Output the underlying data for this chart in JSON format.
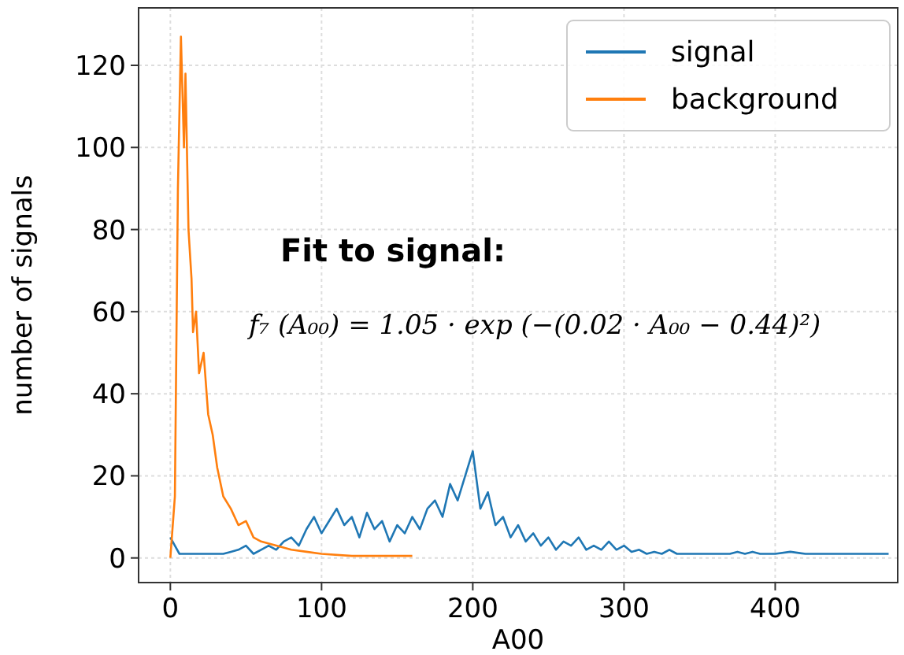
{
  "chart_data": {
    "type": "line",
    "xlabel": "A00",
    "ylabel": "number of signals",
    "xlim": [
      -21,
      481
    ],
    "ylim": [
      -6,
      134
    ],
    "xticks": [
      0,
      100,
      200,
      300,
      400
    ],
    "yticks": [
      0,
      20,
      40,
      60,
      80,
      100,
      120
    ],
    "grid": true,
    "legend": "top right",
    "annotations": [
      "Fit to signal:",
      "f₇ (A₀₀) = 1.05 · exp (−(0.02 · A₀₀ − 0.44)²)"
    ],
    "series": [
      {
        "name": "signal",
        "color": "#1f77b4",
        "x": [
          0,
          3,
          6,
          10,
          15,
          20,
          25,
          30,
          35,
          40,
          45,
          50,
          55,
          60,
          65,
          70,
          75,
          80,
          85,
          90,
          95,
          100,
          105,
          110,
          115,
          120,
          125,
          130,
          135,
          140,
          145,
          150,
          155,
          160,
          165,
          170,
          175,
          180,
          185,
          190,
          195,
          200,
          205,
          210,
          215,
          220,
          225,
          230,
          235,
          240,
          245,
          250,
          255,
          260,
          265,
          270,
          275,
          280,
          285,
          290,
          295,
          300,
          305,
          310,
          315,
          320,
          325,
          330,
          335,
          340,
          350,
          360,
          370,
          375,
          380,
          385,
          390,
          400,
          410,
          420,
          440,
          460,
          475
        ],
        "values": [
          5,
          3,
          1,
          1,
          1,
          1,
          1,
          1,
          1,
          1.5,
          2,
          3,
          1,
          2,
          3,
          2,
          4,
          5,
          3,
          7,
          10,
          6,
          9,
          12,
          8,
          10,
          5,
          11,
          7,
          9,
          4,
          8,
          6,
          10,
          7,
          12,
          14,
          10,
          18,
          14,
          20,
          26,
          12,
          16,
          8,
          10,
          5,
          8,
          4,
          6,
          3,
          5,
          2,
          4,
          3,
          5,
          2,
          3,
          2,
          4,
          2,
          3,
          1.5,
          2,
          1,
          1.5,
          1,
          2,
          1,
          1,
          1,
          1,
          1,
          1.5,
          1,
          1.5,
          1,
          1,
          1.5,
          1,
          1,
          1,
          1
        ]
      },
      {
        "name": "background",
        "color": "#ff7f0e",
        "x": [
          0,
          3,
          5,
          7,
          9,
          10,
          12,
          14,
          15,
          17,
          19,
          22,
          25,
          28,
          31,
          35,
          40,
          45,
          50,
          55,
          60,
          70,
          80,
          90,
          100,
          120,
          140,
          160
        ],
        "values": [
          0,
          15,
          90,
          127,
          100,
          118,
          80,
          68,
          55,
          60,
          45,
          50,
          35,
          30,
          22,
          15,
          12,
          8,
          9,
          5,
          4,
          3,
          2,
          1.5,
          1,
          0.5,
          0.5,
          0.5
        ]
      }
    ]
  }
}
